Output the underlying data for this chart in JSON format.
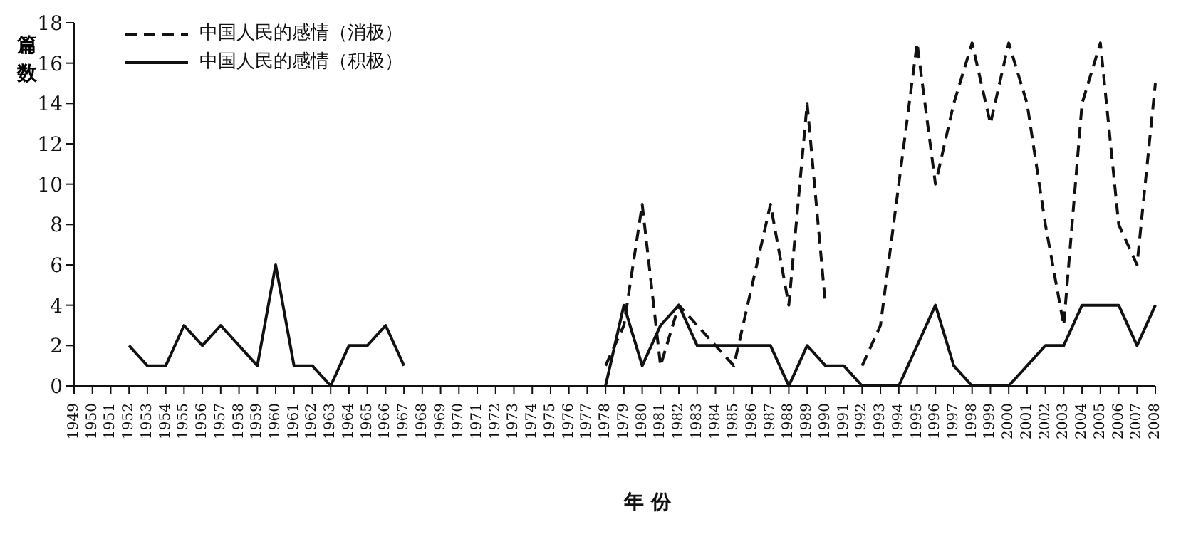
{
  "chart_data": {
    "type": "line",
    "xlabel": "年 份",
    "ylabel": "篇数",
    "categories": [
      "1949",
      "1950",
      "1951",
      "1952",
      "1953",
      "1954",
      "1955",
      "1956",
      "1957",
      "1958",
      "1959",
      "1960",
      "1961",
      "1962",
      "1963",
      "1964",
      "1965",
      "1966",
      "1967",
      "1968",
      "1969",
      "1970",
      "1971",
      "1972",
      "1973",
      "1974",
      "1975",
      "1976",
      "1977",
      "1978",
      "1979",
      "1980",
      "1981",
      "1982",
      "1983",
      "1984",
      "1985",
      "1986",
      "1987",
      "1988",
      "1989",
      "1990",
      "1991",
      "1992",
      "1993",
      "1994",
      "1995",
      "1996",
      "1997",
      "1998",
      "1999",
      "2000",
      "2001",
      "2002",
      "2003",
      "2004",
      "2005",
      "2006",
      "2007",
      "2008"
    ],
    "series": [
      {
        "name": "中国人民的感情（消极）",
        "color": "#111111",
        "line_style": "dashed",
        "values": [
          null,
          null,
          null,
          null,
          null,
          null,
          null,
          null,
          null,
          null,
          null,
          null,
          null,
          null,
          null,
          null,
          null,
          null,
          null,
          null,
          null,
          null,
          null,
          null,
          null,
          null,
          null,
          null,
          null,
          1,
          3,
          9,
          1,
          4,
          3,
          2,
          1,
          5,
          9,
          4,
          14,
          4,
          null,
          1,
          3,
          10,
          17,
          10,
          14,
          17,
          13,
          17,
          14,
          8,
          3,
          14,
          17,
          8,
          6,
          15
        ]
      },
      {
        "name": "中国人民的感情（积极）",
        "color": "#111111",
        "line_style": "solid",
        "values": [
          null,
          null,
          null,
          2,
          1,
          1,
          3,
          2,
          3,
          2,
          1,
          6,
          1,
          1,
          0,
          2,
          2,
          3,
          1,
          null,
          null,
          null,
          null,
          null,
          null,
          null,
          null,
          null,
          null,
          0,
          4,
          1,
          3,
          4,
          2,
          2,
          2,
          2,
          2,
          0,
          2,
          1,
          1,
          0,
          0,
          0,
          2,
          4,
          1,
          0,
          0,
          0,
          1,
          2,
          2,
          4,
          4,
          4,
          2,
          4
        ]
      }
    ],
    "ylim": [
      0,
      18
    ],
    "yticks": [
      0,
      2,
      4,
      6,
      8,
      10,
      12,
      14,
      16,
      18
    ],
    "grid": false,
    "legend": "top left",
    "marker": "none"
  }
}
